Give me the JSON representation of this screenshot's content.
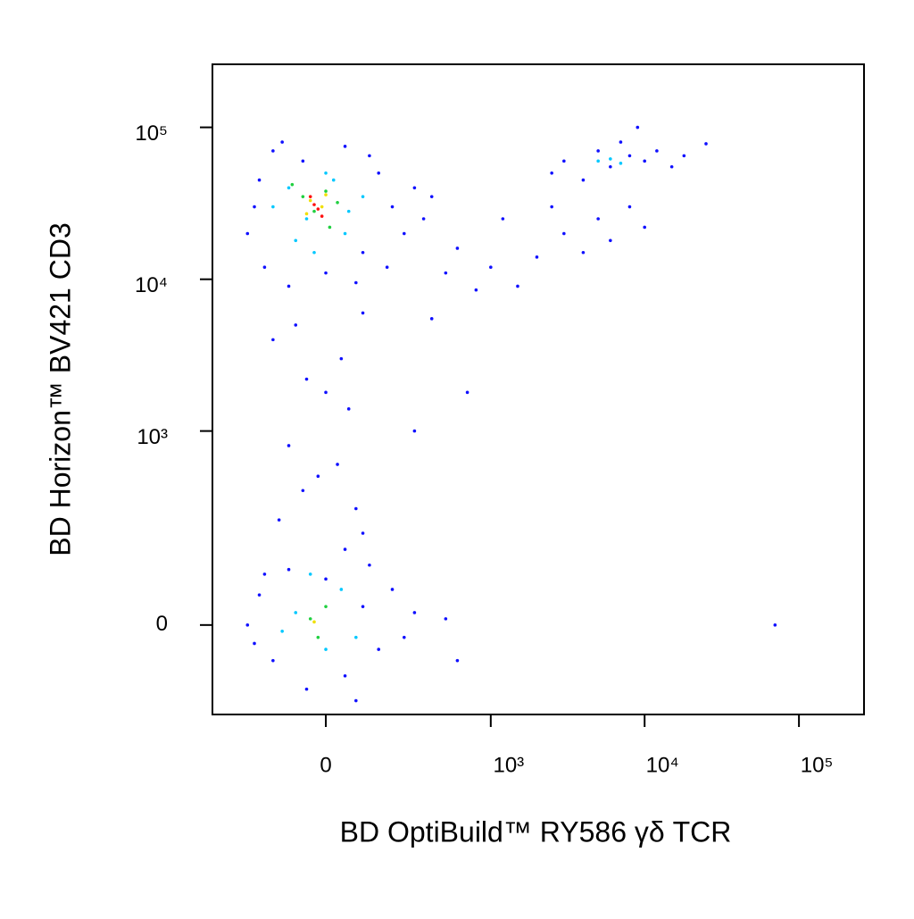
{
  "chart_data": {
    "type": "scatter",
    "xlabel": "BD OptiBuild™ RY586 γδ TCR",
    "ylabel": "BD Horizon™ BV421 CD3",
    "xscale": "biexponential",
    "yscale": "biexponential",
    "xlim": [
      -451,
      264000
    ],
    "ylim": [
      -192,
      260000
    ],
    "xticks": [
      0,
      {
        "value": 1000,
        "label": "10³"
      },
      {
        "value": 10000,
        "label": "10⁴"
      },
      {
        "value": 100000,
        "label": "10⁵"
      }
    ],
    "yticks": [
      0,
      {
        "value": 1000,
        "label": "10³"
      },
      {
        "value": 10000,
        "label": "10⁴"
      },
      {
        "value": 100000,
        "label": "10⁵"
      }
    ],
    "series": [
      {
        "color": "#1010ff",
        "x": [
          -250,
          -200,
          -180,
          -150,
          -100,
          -60,
          0,
          50,
          100,
          150,
          200,
          250,
          300,
          180,
          -220,
          120,
          80,
          -120,
          350,
          400,
          -80,
          40,
          -150,
          100,
          0,
          -50,
          60,
          -100,
          30,
          -60,
          80,
          -20,
          100,
          -130,
          50,
          -250,
          -200,
          -150,
          -100,
          -50,
          0,
          50,
          100,
          150,
          200,
          250,
          300,
          -220,
          120,
          -180,
          500,
          600,
          80,
          2500,
          3000,
          4000,
          5000,
          6000,
          7000,
          8000,
          10000,
          12000,
          15000,
          18000,
          25000,
          9000,
          2500,
          3000,
          4000,
          5000,
          6000,
          8000,
          10000,
          1000,
          1500,
          2000,
          800,
          500,
          600,
          1200,
          70000,
          400,
          700,
          300
        ],
        "y": [
          20000,
          45000,
          12000,
          70000,
          9000,
          60000,
          11000,
          75000,
          15000,
          50000,
          30000,
          20000,
          40000,
          12000,
          30000,
          65000,
          9500,
          80000,
          25000,
          35000,
          5000,
          3000,
          4000,
          6000,
          1800,
          2200,
          1400,
          800,
          600,
          400,
          300,
          500,
          200,
          250,
          150,
          0,
          50,
          -60,
          100,
          -120,
          80,
          -90,
          30,
          -40,
          60,
          -20,
          20,
          -30,
          110,
          90,
          10,
          -60,
          -150,
          50000,
          60000,
          45000,
          70000,
          55000,
          80000,
          65000,
          60000,
          70000,
          55000,
          65000,
          78000,
          100000,
          30000,
          20000,
          15000,
          25000,
          18000,
          30000,
          22000,
          12000,
          9000,
          14000,
          8500,
          11000,
          16000,
          25000,
          0,
          5500,
          1800,
          1000
        ]
      },
      {
        "color": "#00c8ff",
        "x": [
          -100,
          -50,
          0,
          50,
          -150,
          100,
          -80,
          20,
          60,
          -30,
          -80,
          0,
          40,
          -40,
          80,
          -120,
          5000,
          6000,
          7000
        ],
        "y": [
          40000,
          25000,
          50000,
          20000,
          30000,
          35000,
          18000,
          45000,
          28000,
          15000,
          20,
          -40,
          60,
          90,
          -20,
          -10,
          60000,
          62000,
          58000
        ]
      },
      {
        "color": "#20d040",
        "x": [
          -60,
          0,
          -30,
          30,
          -90,
          10,
          -40,
          0,
          -20
        ],
        "y": [
          35000,
          38000,
          28000,
          32000,
          42000,
          22000,
          10,
          30,
          -20
        ]
      },
      {
        "color": "#f0e000",
        "x": [
          -40,
          -10,
          -50,
          0,
          -30
        ],
        "y": [
          33000,
          30000,
          27000,
          36000,
          5
        ]
      },
      {
        "color": "#ff1010",
        "x": [
          -30,
          -20,
          -40,
          -10
        ],
        "y": [
          31000,
          29000,
          35000,
          26000
        ]
      }
    ]
  }
}
